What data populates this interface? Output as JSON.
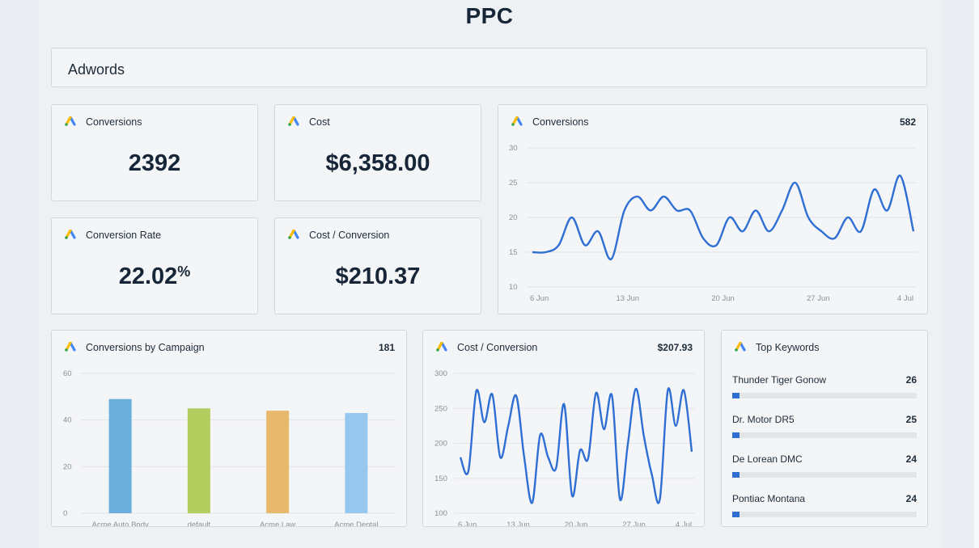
{
  "page": {
    "title": "PPC"
  },
  "section": {
    "title": "Adwords"
  },
  "colors": {
    "line": "#2f6fd4",
    "grid": "#e2e4e6",
    "axis_text": "#8a9096"
  },
  "kpis": [
    {
      "label": "Conversions",
      "value": "2392",
      "icon": "google-ads-icon"
    },
    {
      "label": "Cost",
      "value": "$6,358.00",
      "icon": "google-ads-icon"
    },
    {
      "label": "Conversion Rate",
      "value": "22.02",
      "suffix": "%",
      "icon": "google-ads-icon"
    },
    {
      "label": "Cost / Conversion",
      "value": "$210.37",
      "icon": "google-ads-icon"
    }
  ],
  "conversions_chart": {
    "label": "Conversions",
    "total": "582",
    "chart_data": {
      "type": "line",
      "x_ticks": [
        "6 Jun",
        "13 Jun",
        "20 Jun",
        "27 Jun",
        "4 Jul"
      ],
      "y_ticks": [
        "30",
        "25",
        "20",
        "15",
        "10"
      ],
      "ylim": [
        10,
        30
      ],
      "x": [
        "2024-06-06",
        "2024-06-07",
        "2024-06-08",
        "2024-06-09",
        "2024-06-10",
        "2024-06-11",
        "2024-06-12",
        "2024-06-13",
        "2024-06-14",
        "2024-06-15",
        "2024-06-16",
        "2024-06-17",
        "2024-06-18",
        "2024-06-19",
        "2024-06-20",
        "2024-06-21",
        "2024-06-22",
        "2024-06-23",
        "2024-06-24",
        "2024-06-25",
        "2024-06-26",
        "2024-06-27",
        "2024-06-28",
        "2024-06-29",
        "2024-06-30",
        "2024-07-01",
        "2024-07-02",
        "2024-07-03",
        "2024-07-04",
        "2024-07-05"
      ],
      "values": [
        15,
        15,
        16,
        20,
        16,
        18,
        14,
        21,
        23,
        21,
        23,
        21,
        21,
        17,
        16,
        20,
        18,
        21,
        18,
        21,
        25,
        20,
        18,
        17,
        20,
        18,
        24,
        21,
        26,
        18
      ]
    }
  },
  "campaign_chart": {
    "label": "Conversions by Campaign",
    "total": "181",
    "chart_data": {
      "type": "bar",
      "categories": [
        "Acme Auto Body",
        "default",
        "Acme Law",
        "Acme Dental"
      ],
      "values": [
        49,
        45,
        44,
        43
      ],
      "colors": [
        "#6aaedb",
        "#b3cd5f",
        "#e8b96c",
        "#96c8ef"
      ],
      "y_ticks": [
        "60",
        "40",
        "20",
        "0"
      ],
      "ylim": [
        0,
        60
      ]
    }
  },
  "cpc_chart": {
    "label": "Cost / Conversion",
    "total": "$207.93",
    "chart_data": {
      "type": "line",
      "x_ticks": [
        "6 Jun",
        "13 Jun",
        "20 Jun",
        "27 Jun",
        "4 Jul"
      ],
      "y_ticks": [
        "300",
        "250",
        "200",
        "150",
        "100"
      ],
      "ylim": [
        100,
        300
      ],
      "x": [
        "2024-06-06",
        "2024-06-07",
        "2024-06-08",
        "2024-06-09",
        "2024-06-10",
        "2024-06-11",
        "2024-06-12",
        "2024-06-13",
        "2024-06-14",
        "2024-06-15",
        "2024-06-16",
        "2024-06-17",
        "2024-06-18",
        "2024-06-19",
        "2024-06-20",
        "2024-06-21",
        "2024-06-22",
        "2024-06-23",
        "2024-06-24",
        "2024-06-25",
        "2024-06-26",
        "2024-06-27",
        "2024-06-28",
        "2024-06-29",
        "2024-06-30",
        "2024-07-01",
        "2024-07-02",
        "2024-07-03",
        "2024-07-04",
        "2024-07-05"
      ],
      "values": [
        180,
        160,
        275,
        230,
        270,
        180,
        225,
        268,
        180,
        115,
        212,
        180,
        165,
        256,
        125,
        190,
        178,
        272,
        220,
        268,
        120,
        200,
        278,
        210,
        155,
        120,
        276,
        225,
        276,
        188
      ]
    }
  },
  "top_keywords": {
    "label": "Top Keywords",
    "items": [
      {
        "name": "Thunder Tiger Gonow",
        "value": "26",
        "fraction": 0.04
      },
      {
        "name": "Dr. Motor DR5",
        "value": "25",
        "fraction": 0.04
      },
      {
        "name": "De Lorean DMC",
        "value": "24",
        "fraction": 0.04
      },
      {
        "name": "Pontiac Montana",
        "value": "24",
        "fraction": 0.04
      }
    ]
  }
}
